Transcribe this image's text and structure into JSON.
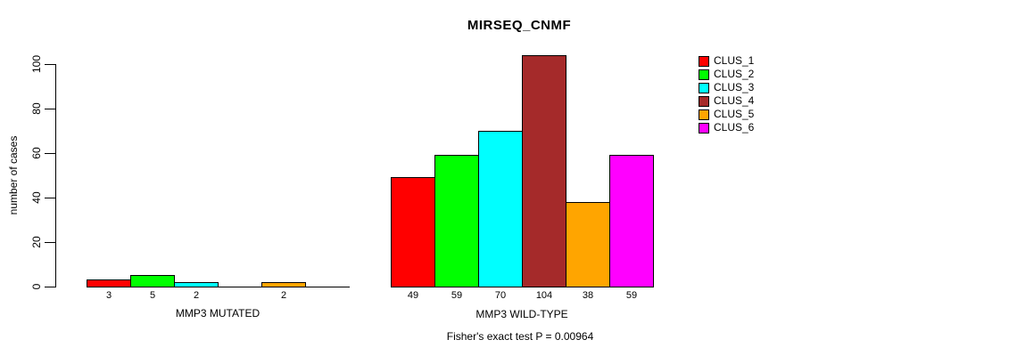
{
  "chart_data": {
    "type": "bar",
    "title": "MIRSEQ_CNMF",
    "ylabel": "number of cases",
    "ylim": [
      0,
      100
    ],
    "yticks": [
      0,
      20,
      40,
      60,
      80,
      100
    ],
    "categories": [
      "MMP3 MUTATED",
      "MMP3 WILD-TYPE"
    ],
    "series": [
      {
        "name": "CLUS_1",
        "color": "#ff0000",
        "values": [
          3,
          49
        ]
      },
      {
        "name": "CLUS_2",
        "color": "#00ff00",
        "values": [
          5,
          59
        ]
      },
      {
        "name": "CLUS_3",
        "color": "#00ffff",
        "values": [
          2,
          70
        ]
      },
      {
        "name": "CLUS_4",
        "color": "#a52a2a",
        "values": [
          0,
          104
        ]
      },
      {
        "name": "CLUS_5",
        "color": "#ffa500",
        "values": [
          2,
          38
        ]
      },
      {
        "name": "CLUS_6",
        "color": "#ff00ff",
        "values": [
          0,
          59
        ]
      }
    ],
    "bar_value_labels_shown": true,
    "annotation": "Fisher's exact test P = 0.00964",
    "legend_position": "right",
    "grid": false
  }
}
